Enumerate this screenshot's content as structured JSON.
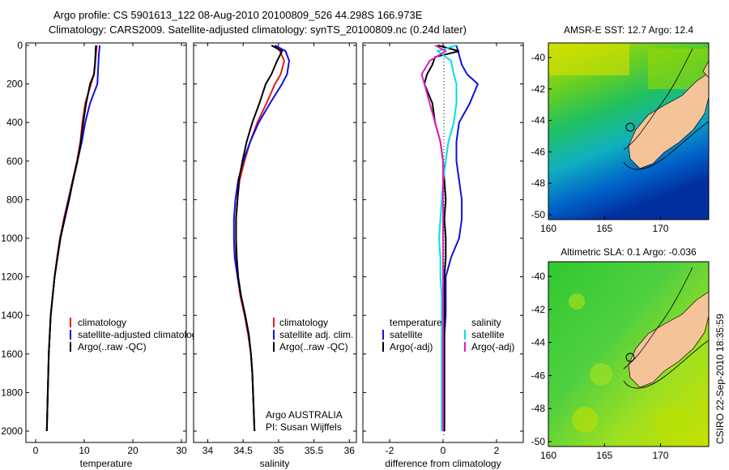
{
  "title_line1": "Argo profile: CS 5901613_122 08-Aug-2010 20100809_526 44.298S 166.973E",
  "title_line2": "Climatology: CARS2009. Satellite-adjusted climatology: synTS_20100809.nc (0.24d later)",
  "side_label": "CSIRO 22-Sep-2010 18:35:59",
  "panels": {
    "temperature": {
      "xlabel": "temperature",
      "legend": [
        "climatology",
        "satellite-adjusted climatology",
        "Argo(..raw -QC)"
      ]
    },
    "salinity": {
      "xlabel": "salinity",
      "legend": [
        "climatology",
        "satellite adj. clim.",
        "Argo(..raw -QC)"
      ],
      "annotation1": "Argo AUSTRALIA",
      "annotation2": "PI: Susan Wijffels"
    },
    "difference": {
      "xlabel": "difference from climatology",
      "head_left": "temperature",
      "head_right": "salinity",
      "legend_left": [
        "satellite",
        "Argo(-adj)"
      ],
      "legend_right": [
        "satellite",
        "Argo(-adj)"
      ]
    }
  },
  "maps": {
    "sst": {
      "title": "AMSR-E SST: 12.7 Argo: 12.4"
    },
    "sla": {
      "title": "Altimetric SLA: 0.1 Argo: -0.036"
    },
    "xticks": [
      160,
      165,
      170
    ],
    "yticks": [
      -40,
      -42,
      -44,
      -46,
      -48,
      -50
    ],
    "float_position": {
      "lon": 166.973,
      "lat": -44.298
    }
  },
  "colors": {
    "climatology": "#e0201a",
    "satellite": "#1010e0",
    "argo": "#000000",
    "sat_salinity": "#00e0e0",
    "argo_salinity": "#e020c0",
    "land": "#f5c398"
  },
  "chart_data": [
    {
      "type": "line",
      "name": "temperature",
      "xlabel": "temperature",
      "ylim": [
        2000,
        0
      ],
      "xlim": [
        -2,
        31
      ],
      "xticks": [
        0,
        10,
        20,
        30
      ],
      "yticks": [
        0,
        200,
        400,
        600,
        800,
        1000,
        1200,
        1400,
        1600,
        1800,
        2000
      ],
      "series": [
        {
          "name": "climatology",
          "color": "#e0201a",
          "depth": [
            0,
            50,
            100,
            150,
            200,
            300,
            400,
            500,
            600,
            700,
            800,
            900,
            1000,
            1100,
            1200,
            1300,
            1400,
            1500,
            1600,
            1700,
            1800,
            1900,
            2000
          ],
          "values": [
            12.6,
            12.4,
            12.2,
            12.0,
            11.4,
            10.2,
            9.6,
            9.2,
            8.5,
            7.6,
            6.7,
            5.8,
            5.0,
            4.4,
            3.9,
            3.5,
            3.1,
            2.9,
            2.7,
            2.6,
            2.5,
            2.4,
            2.3
          ]
        },
        {
          "name": "satellite-adjusted climatology",
          "color": "#1010e0",
          "depth": [
            0,
            50,
            100,
            150,
            200,
            300,
            400,
            500,
            600,
            700,
            800,
            900,
            1000,
            1100,
            1200,
            1300,
            1400,
            1500,
            1600,
            1700,
            1800,
            1900,
            2000
          ],
          "values": [
            13.2,
            13.0,
            12.9,
            12.8,
            12.7,
            11.2,
            10.2,
            9.5,
            8.6,
            7.7,
            6.8,
            5.9,
            5.1,
            4.5,
            3.9,
            3.5,
            3.1,
            2.9,
            2.7,
            2.6,
            2.5,
            2.4,
            2.3
          ]
        },
        {
          "name": "Argo(..raw -QC)",
          "color": "#000000",
          "depth": [
            0,
            50,
            100,
            150,
            200,
            300,
            400,
            500,
            600,
            700,
            800,
            900,
            1000,
            1100,
            1200,
            1300,
            1400,
            1500,
            1600,
            1700,
            1800,
            1900,
            2000
          ],
          "values": [
            12.4,
            12.3,
            12.2,
            12.0,
            11.2,
            10.4,
            9.8,
            9.3,
            8.6,
            7.7,
            6.9,
            6.0,
            5.1,
            4.5,
            3.9,
            3.5,
            3.1,
            2.9,
            2.7,
            2.6,
            2.5,
            2.4,
            2.3
          ]
        }
      ]
    },
    {
      "type": "line",
      "name": "salinity",
      "xlabel": "salinity",
      "ylim": [
        2000,
        0
      ],
      "xlim": [
        33.8,
        36.1
      ],
      "xticks": [
        34,
        34.5,
        35,
        35.5,
        36
      ],
      "series": [
        {
          "name": "climatology",
          "color": "#e0201a",
          "depth": [
            0,
            30,
            80,
            150,
            200,
            300,
            400,
            500,
            600,
            700,
            800,
            900,
            1000,
            1100,
            1200,
            1300,
            1400,
            1500,
            1600,
            1700,
            1800,
            1900,
            2000
          ],
          "values": [
            34.95,
            35.02,
            35.08,
            35.03,
            34.95,
            34.83,
            34.7,
            34.6,
            34.52,
            34.45,
            34.42,
            34.4,
            34.4,
            34.4,
            34.42,
            34.46,
            34.52,
            34.57,
            34.61,
            34.63,
            34.64,
            34.65,
            34.66
          ]
        },
        {
          "name": "satellite adj. clim.",
          "color": "#1010e0",
          "depth": [
            0,
            30,
            80,
            150,
            200,
            300,
            400,
            500,
            600,
            700,
            800,
            900,
            1000,
            1100,
            1200,
            1300,
            1400,
            1500,
            1600,
            1700,
            1800,
            1900,
            2000
          ],
          "values": [
            34.95,
            35.1,
            35.15,
            35.12,
            35.05,
            34.88,
            34.72,
            34.6,
            34.5,
            34.43,
            34.39,
            34.37,
            34.37,
            34.38,
            34.42,
            34.47,
            34.53,
            34.58,
            34.61,
            34.63,
            34.64,
            34.65,
            34.66
          ]
        },
        {
          "name": "Argo(..raw -QC)",
          "color": "#000000",
          "depth": [
            0,
            30,
            80,
            150,
            200,
            300,
            400,
            500,
            600,
            700,
            800,
            900,
            1000,
            1100,
            1200,
            1300,
            1400,
            1500,
            1600,
            1700,
            1800,
            1900,
            2000
          ],
          "values": [
            34.9,
            35.05,
            34.98,
            34.9,
            34.82,
            34.73,
            34.63,
            34.55,
            34.49,
            34.44,
            34.42,
            34.4,
            34.4,
            34.41,
            34.43,
            34.47,
            34.53,
            34.58,
            34.61,
            34.63,
            34.64,
            34.65,
            34.66
          ]
        }
      ]
    },
    {
      "type": "line",
      "name": "difference",
      "xlabel": "difference from climatology",
      "ylim": [
        2000,
        0
      ],
      "xlim": [
        -3,
        3
      ],
      "xticks": [
        -2,
        0,
        2
      ],
      "series": [
        {
          "name": "temperature satellite",
          "color": "#1010e0",
          "depth": [
            0,
            50,
            100,
            150,
            200,
            300,
            400,
            500,
            600,
            700,
            800,
            900,
            1000,
            1100,
            1200,
            1300,
            1400,
            1500,
            1600,
            1700,
            1800,
            1900,
            2000
          ],
          "values": [
            0.5,
            0.6,
            0.7,
            0.9,
            1.3,
            1.0,
            0.6,
            0.5,
            0.5,
            0.6,
            0.7,
            0.7,
            0.6,
            0.3,
            0.1,
            0.1,
            0.1,
            0.05,
            0.05,
            0.05,
            0.05,
            0.05,
            0.05
          ]
        },
        {
          "name": "temperature Argo(-adj)",
          "color": "#000000",
          "depth": [
            0,
            30,
            60,
            100,
            150,
            200,
            300,
            400,
            500,
            600,
            700,
            800,
            900,
            1000,
            1100,
            1200,
            1300,
            1400,
            1500,
            1600,
            1700,
            1800,
            1900,
            2000
          ],
          "values": [
            -0.2,
            0.6,
            -0.3,
            -0.4,
            -0.6,
            -0.7,
            -0.4,
            -0.3,
            -0.1,
            0.0,
            0.05,
            0.1,
            0.05,
            0.1,
            0.1,
            0.05,
            0.05,
            0.05,
            0.05,
            0.05,
            0.05,
            0.05,
            0.05,
            0.05
          ]
        },
        {
          "name": "salinity satellite",
          "color": "#00e0e0",
          "depth": [
            0,
            30,
            80,
            150,
            200,
            300,
            400,
            500,
            600,
            700,
            800,
            900,
            1000,
            1100,
            1200,
            1300,
            1400,
            1500,
            1600,
            1700,
            1800,
            1900,
            2000
          ],
          "values": [
            0.5,
            -0.2,
            0.3,
            0.4,
            0.5,
            0.5,
            0.4,
            0.2,
            0.1,
            0.0,
            -0.05,
            -0.1,
            -0.15,
            -0.1,
            -0.1,
            -0.05,
            -0.05,
            -0.05,
            -0.05,
            -0.05,
            -0.05,
            -0.05,
            -0.05
          ]
        },
        {
          "name": "salinity Argo(-adj)",
          "color": "#e020c0",
          "depth": [
            0,
            30,
            80,
            150,
            200,
            300,
            400,
            500,
            600,
            700,
            800,
            900,
            1000,
            1100,
            1200,
            1300,
            1400,
            1500,
            1600,
            1700,
            1800,
            1900,
            2000
          ],
          "values": [
            -0.3,
            0.1,
            -0.5,
            -0.8,
            -0.7,
            -0.5,
            -0.3,
            -0.1,
            0.0,
            0.0,
            0.0,
            0.0,
            0.0,
            0.0,
            0.0,
            0.0,
            0.0,
            0.0,
            0.0,
            0.0,
            0.0,
            0.0,
            0.0
          ]
        }
      ]
    }
  ]
}
